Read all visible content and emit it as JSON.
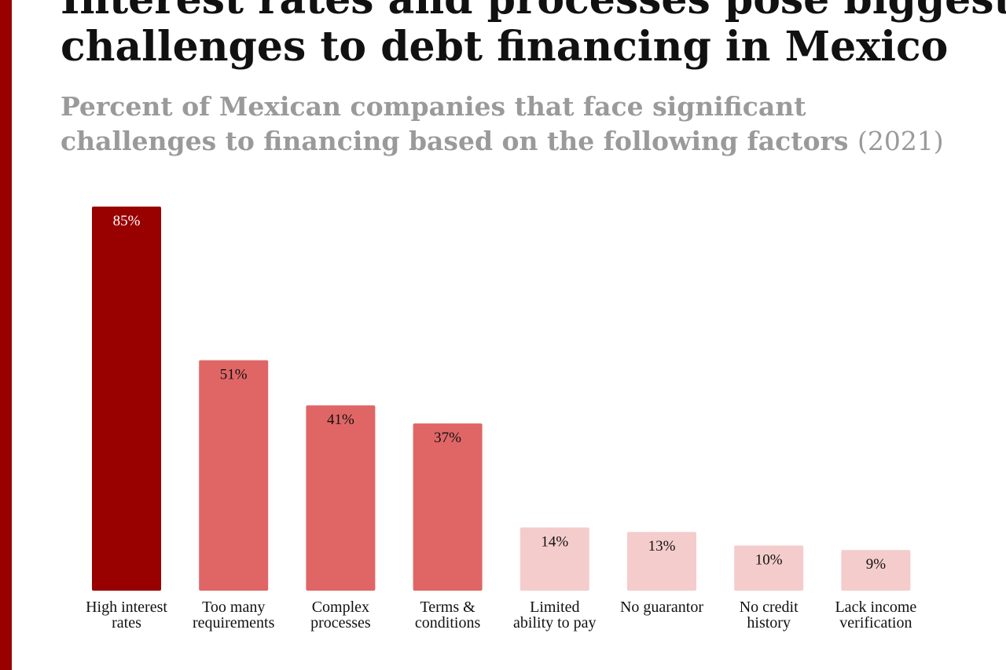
{
  "title": {
    "line1": "Interest rates and processes pose biggest",
    "line2": "challenges to debt financing in Mexico"
  },
  "subtitle": {
    "line1": "Percent of Mexican companies that face significant",
    "line2": "challenges to financing based on the following factors",
    "year": "(2021)"
  },
  "colors": {
    "accent": "#990000",
    "top": "#990000",
    "mid": "#e06666",
    "low": "#f4cccc"
  },
  "chart_data": {
    "type": "bar",
    "categories": [
      [
        "High interest",
        "rates"
      ],
      [
        "Too many",
        "requirements"
      ],
      [
        "Complex",
        "processes"
      ],
      [
        "Terms &",
        "conditions"
      ],
      [
        "Limited",
        "ability to pay"
      ],
      [
        "No guarantor"
      ],
      [
        "No credit",
        "history"
      ],
      [
        "Lack income",
        "verification"
      ]
    ],
    "values": [
      85,
      51,
      41,
      37,
      14,
      13,
      10,
      9
    ],
    "value_labels": [
      "85%",
      "51%",
      "41%",
      "37%",
      "14%",
      "13%",
      "10%",
      "9%"
    ],
    "tiers": [
      "top",
      "mid",
      "mid",
      "mid",
      "low",
      "low",
      "low",
      "low"
    ],
    "ylim": [
      0,
      85
    ],
    "grid": false,
    "legend": "none"
  }
}
